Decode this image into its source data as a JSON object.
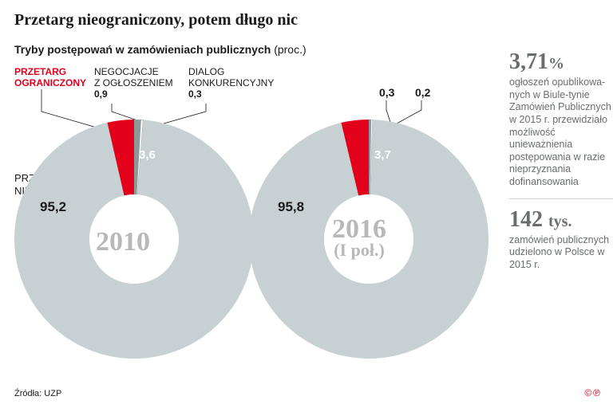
{
  "title": "Przetarg nieograniczony, potem długo nic",
  "subtitle": {
    "text": "Tryby postępowań w zamówieniach publicznych",
    "unit": "(proc.)"
  },
  "labels": {
    "przetarg_ograniczony": "PRZETARG\nOGRANICZONY",
    "negocjacje": "NEGOCJACJE\nZ OGŁOSZENIEM",
    "dialog": "DIALOG\nKONKURENCYJNY",
    "przetarg_nieograniczony": "PRZETARG\nNIEOGRANICZONY"
  },
  "charts": {
    "type": "donut",
    "outer_radius": 150,
    "inner_radius": 56,
    "colors": {
      "nieograniczony": "#c7d0d2",
      "ograniczony": "#e2001a",
      "negocjacje": "#8e9799",
      "dialog": "#ffffff",
      "dialog_stroke": "#8e9799",
      "center_fill": "#ffffff",
      "center_year_color": "#b8b8b8"
    },
    "chart1": {
      "year": "2010",
      "slices": [
        {
          "key": "nieograniczony",
          "value": 95.2
        },
        {
          "key": "ograniczony",
          "value": 3.6
        },
        {
          "key": "negocjacje",
          "value": 0.9
        },
        {
          "key": "dialog",
          "value": 0.3
        }
      ],
      "val_nieograniczony": "95,2",
      "val_ograniczony": "3,6",
      "val_negocjacje": "0,9",
      "val_dialog": "0,3"
    },
    "chart2": {
      "year": "2016",
      "year_sub": "(I poł.)",
      "slices": [
        {
          "key": "nieograniczony",
          "value": 95.8
        },
        {
          "key": "ograniczony",
          "value": 3.7
        },
        {
          "key": "negocjacje",
          "value": 0.3
        },
        {
          "key": "dialog",
          "value": 0.2
        }
      ],
      "val_nieograniczony": "95,8",
      "val_ograniczony": "3,7",
      "val_negocjacje": "0,3",
      "val_dialog": "0,2"
    }
  },
  "right": {
    "stat1_value": "3,71",
    "stat1_unit": "%",
    "stat1_text": "ogłoszeń opublikowa-nych w Biule-tynie Zamówień Publicznych w 2015 r. przewidziało możliwość unieważnienia postępowania w razie nieprzyznania dofinansowania",
    "stat2_value": "142",
    "stat2_unit": "tys.",
    "stat2_text": "zamówień publicznych udzielono w Polsce w 2015 r."
  },
  "source": "Źródła: UZP",
  "copyright": "©℗",
  "leader_stroke": "#1a1a1a"
}
